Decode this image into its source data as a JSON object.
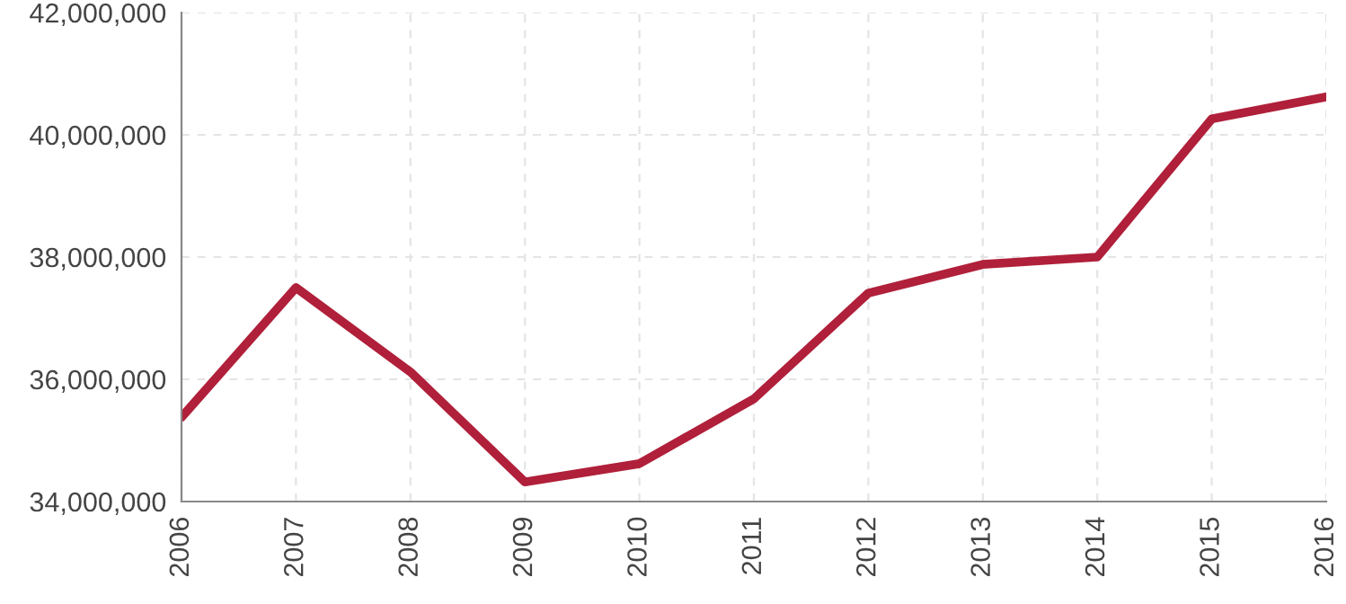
{
  "chart_data": {
    "type": "line",
    "categories": [
      "2006",
      "2007",
      "2008",
      "2009",
      "2010",
      "2011",
      "2012",
      "2013",
      "2014",
      "2015",
      "2016"
    ],
    "series": [
      {
        "color": "#b0203a",
        "values": [
          35380000,
          37500000,
          36120000,
          34320000,
          34620000,
          35680000,
          37410000,
          37880000,
          38000000,
          40260000,
          40620000
        ]
      }
    ],
    "ylim": [
      34000000,
      42000000
    ],
    "yticks": [
      {
        "value": 34000000,
        "label": "34,000,000"
      },
      {
        "value": 36000000,
        "label": "36,000,000"
      },
      {
        "value": 38000000,
        "label": "38,000,000"
      },
      {
        "value": 40000000,
        "label": "40,000,000"
      },
      {
        "value": 42000000,
        "label": "42,000,000"
      }
    ],
    "grid": true,
    "marker": "none",
    "line_style": "solid"
  }
}
